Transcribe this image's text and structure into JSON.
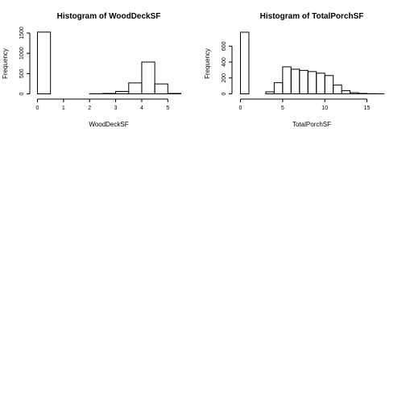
{
  "chart_data": [
    {
      "type": "bar",
      "title": "Histogram of  WoodDeckSF",
      "xlabel": "WoodDeckSF",
      "ylabel": "Frequency",
      "xlim": [
        0,
        5.5
      ],
      "ylim": [
        0,
        1550
      ],
      "xticks": [
        0,
        1,
        2,
        3,
        4,
        5
      ],
      "yticks": [
        0,
        500,
        1000,
        1500
      ],
      "bin_width": 0.5,
      "bins": [
        {
          "x0": 0.0,
          "x1": 0.5,
          "count": 1523
        },
        {
          "x0": 0.5,
          "x1": 1.0,
          "count": 0
        },
        {
          "x0": 1.0,
          "x1": 1.5,
          "count": 0
        },
        {
          "x0": 1.5,
          "x1": 2.0,
          "count": 0
        },
        {
          "x0": 2.0,
          "x1": 2.5,
          "count": 2
        },
        {
          "x0": 2.5,
          "x1": 3.0,
          "count": 10
        },
        {
          "x0": 3.0,
          "x1": 3.5,
          "count": 60
        },
        {
          "x0": 3.5,
          "x1": 4.0,
          "count": 270
        },
        {
          "x0": 4.0,
          "x1": 4.5,
          "count": 785
        },
        {
          "x0": 4.5,
          "x1": 5.0,
          "count": 245
        },
        {
          "x0": 5.0,
          "x1": 5.5,
          "count": 10
        }
      ],
      "grid": false,
      "legend": "none"
    },
    {
      "type": "bar",
      "title": "Histogram of  TotalPorchSF",
      "xlabel": "TotalPorchSF",
      "ylabel": "Frequency",
      "xlim": [
        0,
        17
      ],
      "ylim": [
        0,
        780
      ],
      "xticks": [
        0,
        5,
        10,
        15
      ],
      "yticks": [
        0,
        200,
        400,
        600
      ],
      "bin_width": 1,
      "bins": [
        {
          "x0": 0,
          "x1": 1,
          "count": 775
        },
        {
          "x0": 1,
          "x1": 2,
          "count": 0
        },
        {
          "x0": 2,
          "x1": 3,
          "count": 0
        },
        {
          "x0": 3,
          "x1": 4,
          "count": 25
        },
        {
          "x0": 4,
          "x1": 5,
          "count": 140
        },
        {
          "x0": 5,
          "x1": 6,
          "count": 340
        },
        {
          "x0": 6,
          "x1": 7,
          "count": 310
        },
        {
          "x0": 7,
          "x1": 8,
          "count": 295
        },
        {
          "x0": 8,
          "x1": 9,
          "count": 280
        },
        {
          "x0": 9,
          "x1": 10,
          "count": 260
        },
        {
          "x0": 10,
          "x1": 11,
          "count": 230
        },
        {
          "x0": 11,
          "x1": 12,
          "count": 110
        },
        {
          "x0": 12,
          "x1": 13,
          "count": 40
        },
        {
          "x0": 13,
          "x1": 14,
          "count": 15
        },
        {
          "x0": 14,
          "x1": 15,
          "count": 5
        },
        {
          "x0": 15,
          "x1": 16,
          "count": 2
        },
        {
          "x0": 16,
          "x1": 17,
          "count": 1
        }
      ],
      "grid": false,
      "legend": "none"
    }
  ]
}
